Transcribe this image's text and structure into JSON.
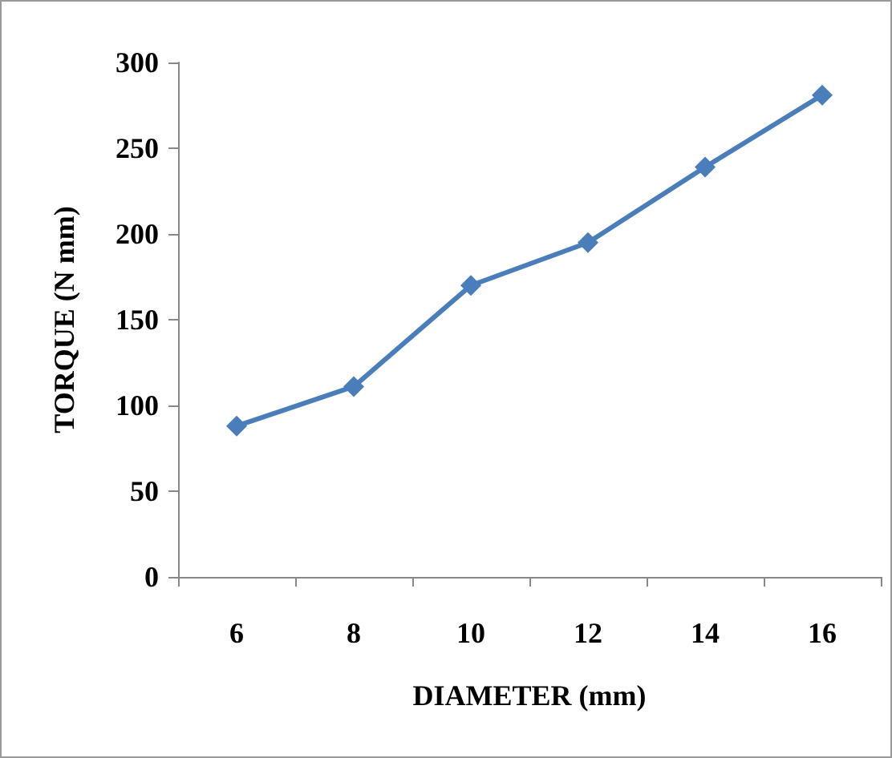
{
  "chart_data": {
    "type": "line",
    "xlabel": "DIAMETER (mm)",
    "ylabel": "TORQUE (N mm)",
    "categories": [
      "6",
      "8",
      "10",
      "12",
      "14",
      "16"
    ],
    "series": [
      {
        "color": "#4a7ebb",
        "values": [
          88,
          111,
          170,
          195,
          239,
          281
        ]
      }
    ],
    "ylim": [
      0,
      300
    ],
    "yticks": [
      0,
      50,
      100,
      150,
      200,
      250,
      300
    ],
    "grid": false,
    "marker": "diamond",
    "line_style": "solid"
  }
}
